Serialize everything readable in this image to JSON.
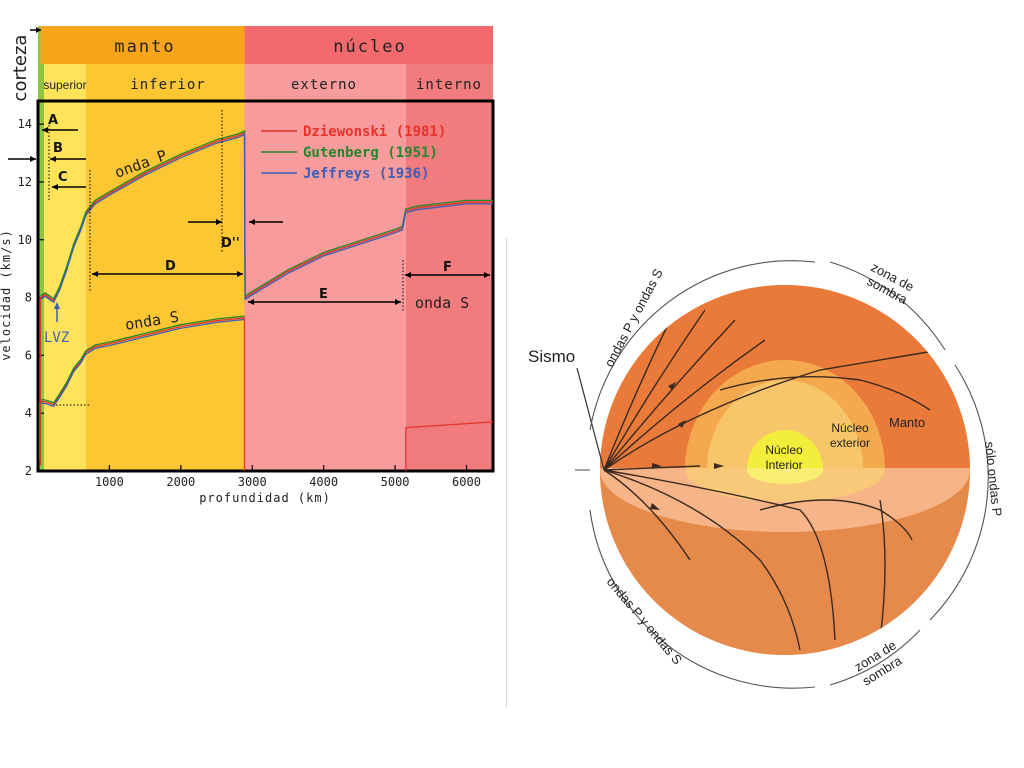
{
  "chart_data": {
    "type": "line",
    "xlabel": "profundidad (km)",
    "ylabel": "velocidad (km/s)",
    "xlim": [
      0,
      6371
    ],
    "ylim": [
      2,
      14.8
    ],
    "x_ticks": [
      1000,
      2000,
      3000,
      4000,
      5000,
      6000
    ],
    "y_ticks": [
      2,
      4,
      6,
      8,
      10,
      12,
      14
    ],
    "grid": false,
    "legend_position": "top-right",
    "layers": {
      "top": [
        {
          "label": "corteza",
          "x0": 0,
          "x1": 35,
          "color": "#8cc63e"
        },
        {
          "label": "manto",
          "x0": 35,
          "x1": 2891,
          "color": "#f9a51a"
        },
        {
          "label": "núcleo",
          "x0": 2891,
          "x1": 6371,
          "color": "#f26a6d"
        }
      ],
      "sub": [
        {
          "label": "superior",
          "x0": 35,
          "x1": 670,
          "color": "#ffe35a"
        },
        {
          "label": "inferior",
          "x0": 670,
          "x1": 2891,
          "color": "#fcc732"
        },
        {
          "label": "externo",
          "x0": 2891,
          "x1": 5150,
          "color": "#f89b9c"
        },
        {
          "label": "interno",
          "x0": 5150,
          "x1": 6371,
          "color": "#f27b7e"
        }
      ]
    },
    "series": [
      {
        "name": "Dziewonski (1981)",
        "color": "#e8322a"
      },
      {
        "name": "Gutenberg (1951)",
        "color": "#23872b"
      },
      {
        "name": "Jeffreys (1936)",
        "color": "#3a5fb8"
      }
    ],
    "wave_labels": {
      "p": "onda P",
      "s_mantle": "onda S",
      "s_core": "onda S",
      "lvz": "LVZ"
    },
    "region_labels": [
      "A",
      "B",
      "C",
      "D",
      "D''",
      "E",
      "F"
    ],
    "p_wave": {
      "x": [
        35,
        100,
        220,
        300,
        400,
        500,
        600,
        670,
        800,
        1000,
        1500,
        2000,
        2500,
        2800,
        2891,
        2900,
        3500,
        4000,
        4500,
        5000,
        5100,
        5150,
        5300,
        6000,
        6371
      ],
      "y": [
        8.0,
        8.1,
        7.9,
        8.3,
        9.0,
        9.8,
        10.4,
        10.9,
        11.3,
        11.6,
        12.3,
        12.9,
        13.4,
        13.6,
        13.7,
        8.0,
        8.9,
        9.5,
        9.9,
        10.3,
        10.4,
        11.0,
        11.1,
        11.3,
        11.3
      ]
    },
    "s_wave": {
      "x": [
        35,
        100,
        220,
        300,
        400,
        500,
        600,
        670,
        800,
        1000,
        1500,
        2000,
        2500,
        2891
      ],
      "y": [
        4.4,
        4.4,
        4.3,
        4.6,
        5.0,
        5.5,
        5.8,
        6.1,
        6.3,
        6.4,
        6.7,
        7.0,
        7.2,
        7.3
      ]
    },
    "s_core": {
      "x": [
        5150,
        6371
      ],
      "y": [
        3.5,
        3.7
      ]
    }
  },
  "diagram": {
    "sismo": "Sismo",
    "manto": "Manto",
    "nucleo_exterior": [
      "Núcleo",
      "exterior"
    ],
    "nucleo_interior": [
      "Núcleo",
      "Interior"
    ],
    "ondas_ps_top": "ondas P y ondas S",
    "zona_sombra_top": [
      "zona de",
      "sombra"
    ],
    "solo_ondas_p": "sólo ondas P",
    "zona_sombra_bottom": [
      "zona de",
      "sombra"
    ],
    "ondas_ps_bottom": "ondas P y ondas S",
    "colors": {
      "mantle": "#ea7a3a",
      "outer_core": "#f8b45a",
      "inner_core": "#f3ee3c",
      "lower": "#f0aa6e"
    }
  }
}
